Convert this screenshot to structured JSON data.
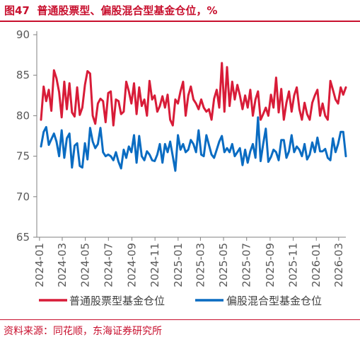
{
  "header": {
    "figure_no": "图47",
    "title": "普通股票型、偏股混合型基金仓位，%"
  },
  "footer": {
    "source": "资料来源：同花顺，东海证券研究所"
  },
  "colors": {
    "accent": "#c8102e",
    "series1": "#d81c38",
    "series2": "#0a6cc2",
    "axis": "#808080"
  },
  "chart_data": {
    "type": "line",
    "title": "",
    "xlabel": "",
    "ylabel": "",
    "ylim": [
      65,
      90
    ],
    "yticks": [
      65,
      70,
      75,
      80,
      85,
      90
    ],
    "x_range": [
      "2024-01-05",
      "2026-03-20"
    ],
    "x_tick_labels": [
      "2024-01",
      "2024-03",
      "2024-05",
      "2024-07",
      "2024-09",
      "2024-11",
      "2025-01",
      "2025-03",
      "2025-05",
      "2025-07",
      "2025-09",
      "2025-11",
      "2026-01",
      "2026-03"
    ],
    "grid": false,
    "legend_position": "bottom",
    "series": [
      {
        "name": "普通股票型基金仓位",
        "values": [
          79.5,
          83.6,
          81.8,
          83.2,
          80.6,
          85.6,
          84.6,
          82.9,
          79.8,
          84.2,
          80.8,
          84.0,
          80.4,
          79.9,
          83.5,
          80.1,
          81.0,
          83.8,
          85.5,
          85.2,
          80.0,
          79.0,
          81.5,
          82.1,
          81.8,
          79.2,
          82.8,
          83.0,
          78.8,
          82.0,
          81.8,
          80.2,
          80.5,
          84.2,
          83.0,
          81.5,
          84.0,
          80.2,
          83.5,
          81.2,
          82.0,
          80.0,
          84.3,
          82.0,
          82.5,
          80.5,
          81.2,
          82.4,
          81.0,
          82.6,
          79.5,
          78.8,
          82.0,
          81.5,
          83.0,
          84.2,
          80.0,
          82.5,
          83.6,
          82.0,
          81.5,
          80.8,
          82.0,
          81.0,
          80.5,
          80.8,
          79.5,
          82.1,
          83.2,
          81.0,
          86.5,
          80.5,
          86.0,
          81.2,
          84.2,
          82.0,
          83.8,
          82.5,
          80.8,
          82.5,
          81.0,
          83.2,
          80.0,
          82.0,
          83.0,
          79.5,
          80.2,
          81.0,
          80.0,
          82.6,
          81.0,
          84.7,
          80.4,
          83.3,
          79.5,
          81.6,
          83.0,
          80.5,
          82.5,
          83.5,
          80.8,
          79.5,
          81.6,
          80.2,
          79.5,
          81.6,
          82.5,
          83.2,
          80.0,
          81.5,
          80.0,
          79.5,
          84.3,
          83.2,
          82.0,
          81.5,
          83.5,
          82.6,
          83.5
        ]
      },
      {
        "name": "偏股混合型基金仓位",
        "values": [
          76.2,
          78.0,
          78.6,
          76.4,
          77.1,
          77.8,
          76.8,
          75.0,
          78.2,
          74.8,
          77.2,
          77.8,
          73.6,
          76.3,
          76.6,
          73.8,
          73.6,
          76.6,
          74.6,
          78.5,
          76.8,
          76.0,
          76.5,
          78.5,
          75.5,
          75.0,
          75.2,
          75.0,
          74.5,
          75.5,
          74.3,
          73.5,
          75.8,
          74.8,
          76.2,
          75.5,
          77.6,
          74.2,
          77.5,
          75.0,
          74.5,
          75.6,
          75.2,
          74.5,
          74.4,
          75.2,
          76.5,
          74.2,
          76.5,
          75.5,
          76.8,
          75.0,
          73.2,
          77.6,
          75.8,
          76.5,
          75.5,
          75.8,
          77.0,
          76.5,
          75.5,
          78.2,
          75.2,
          75.0,
          77.6,
          76.4,
          75.2,
          74.8,
          75.8,
          76.8,
          77.5,
          75.5,
          76.0,
          75.5,
          76.5,
          75.0,
          75.5,
          76.0,
          73.9,
          75.8,
          74.2,
          75.6,
          76.5,
          74.8,
          79.8,
          74.4,
          76.5,
          78.4,
          74.3,
          74.9,
          75.8,
          75.5,
          74.5,
          77.0,
          77.0,
          74.8,
          75.6,
          77.6,
          75.5,
          76.2,
          75.8,
          75.0,
          76.5,
          74.6,
          75.2,
          76.7,
          75.5,
          77.3,
          75.6,
          75.6,
          75.9,
          74.8,
          74.5,
          77.2,
          75.5,
          76.5,
          78.0,
          78.0,
          75.0
        ]
      }
    ]
  }
}
